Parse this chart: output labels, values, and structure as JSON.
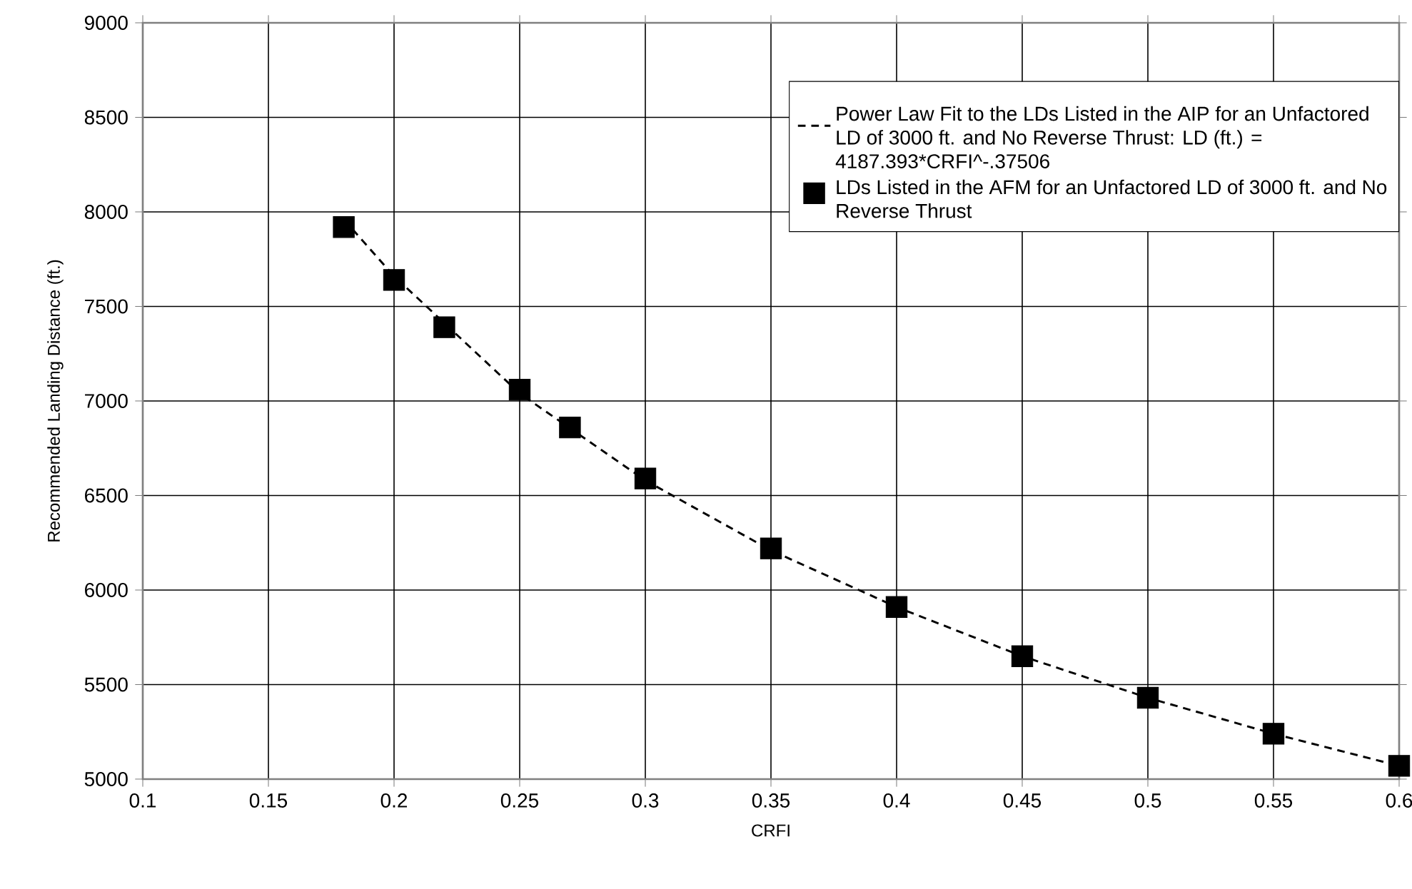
{
  "chart_data": {
    "type": "scatter",
    "xlabel": "CRFI",
    "ylabel": "Recommended Landing Distance (ft.)",
    "xlim": [
      0.1,
      0.6
    ],
    "xticks": [
      0.1,
      0.15,
      0.2,
      0.25,
      0.3,
      0.35,
      0.4,
      0.45,
      0.5,
      0.55,
      0.6
    ],
    "ylim": [
      5000,
      9000
    ],
    "yticks": [
      5000,
      5500,
      6000,
      6500,
      7000,
      7500,
      8000,
      8500,
      9000
    ],
    "grid": true,
    "legend": "top right",
    "series": [
      {
        "type": "line",
        "name": "Power Law Fit to the LDs Listed in the AIP for an Unfactored LD of 3000 ft. and No Reverse Thrust: LD (ft.) = 4187.393*CRFI^-.37506",
        "color": "#000000",
        "line_style": "dashed",
        "marker": "none",
        "x": [
          0.18,
          0.2,
          0.25,
          0.3,
          0.35,
          0.4,
          0.45,
          0.5,
          0.55,
          0.6
        ],
        "values": [
          7960,
          7660,
          7040,
          6580,
          6210,
          5910,
          5650,
          5430,
          5240,
          5070
        ]
      },
      {
        "type": "scatter",
        "name": "LDs Listed in the AFM for an Unfactored LD of 3000 ft. and No Reverse Thrust",
        "color": "#000000",
        "marker": "square",
        "x": [
          0.18,
          0.2,
          0.22,
          0.25,
          0.27,
          0.3,
          0.35,
          0.4,
          0.45,
          0.5,
          0.55,
          0.6
        ],
        "values": [
          7920,
          7640,
          7390,
          7060,
          6860,
          6590,
          6220,
          5910,
          5650,
          5430,
          5240,
          5070
        ]
      }
    ]
  }
}
